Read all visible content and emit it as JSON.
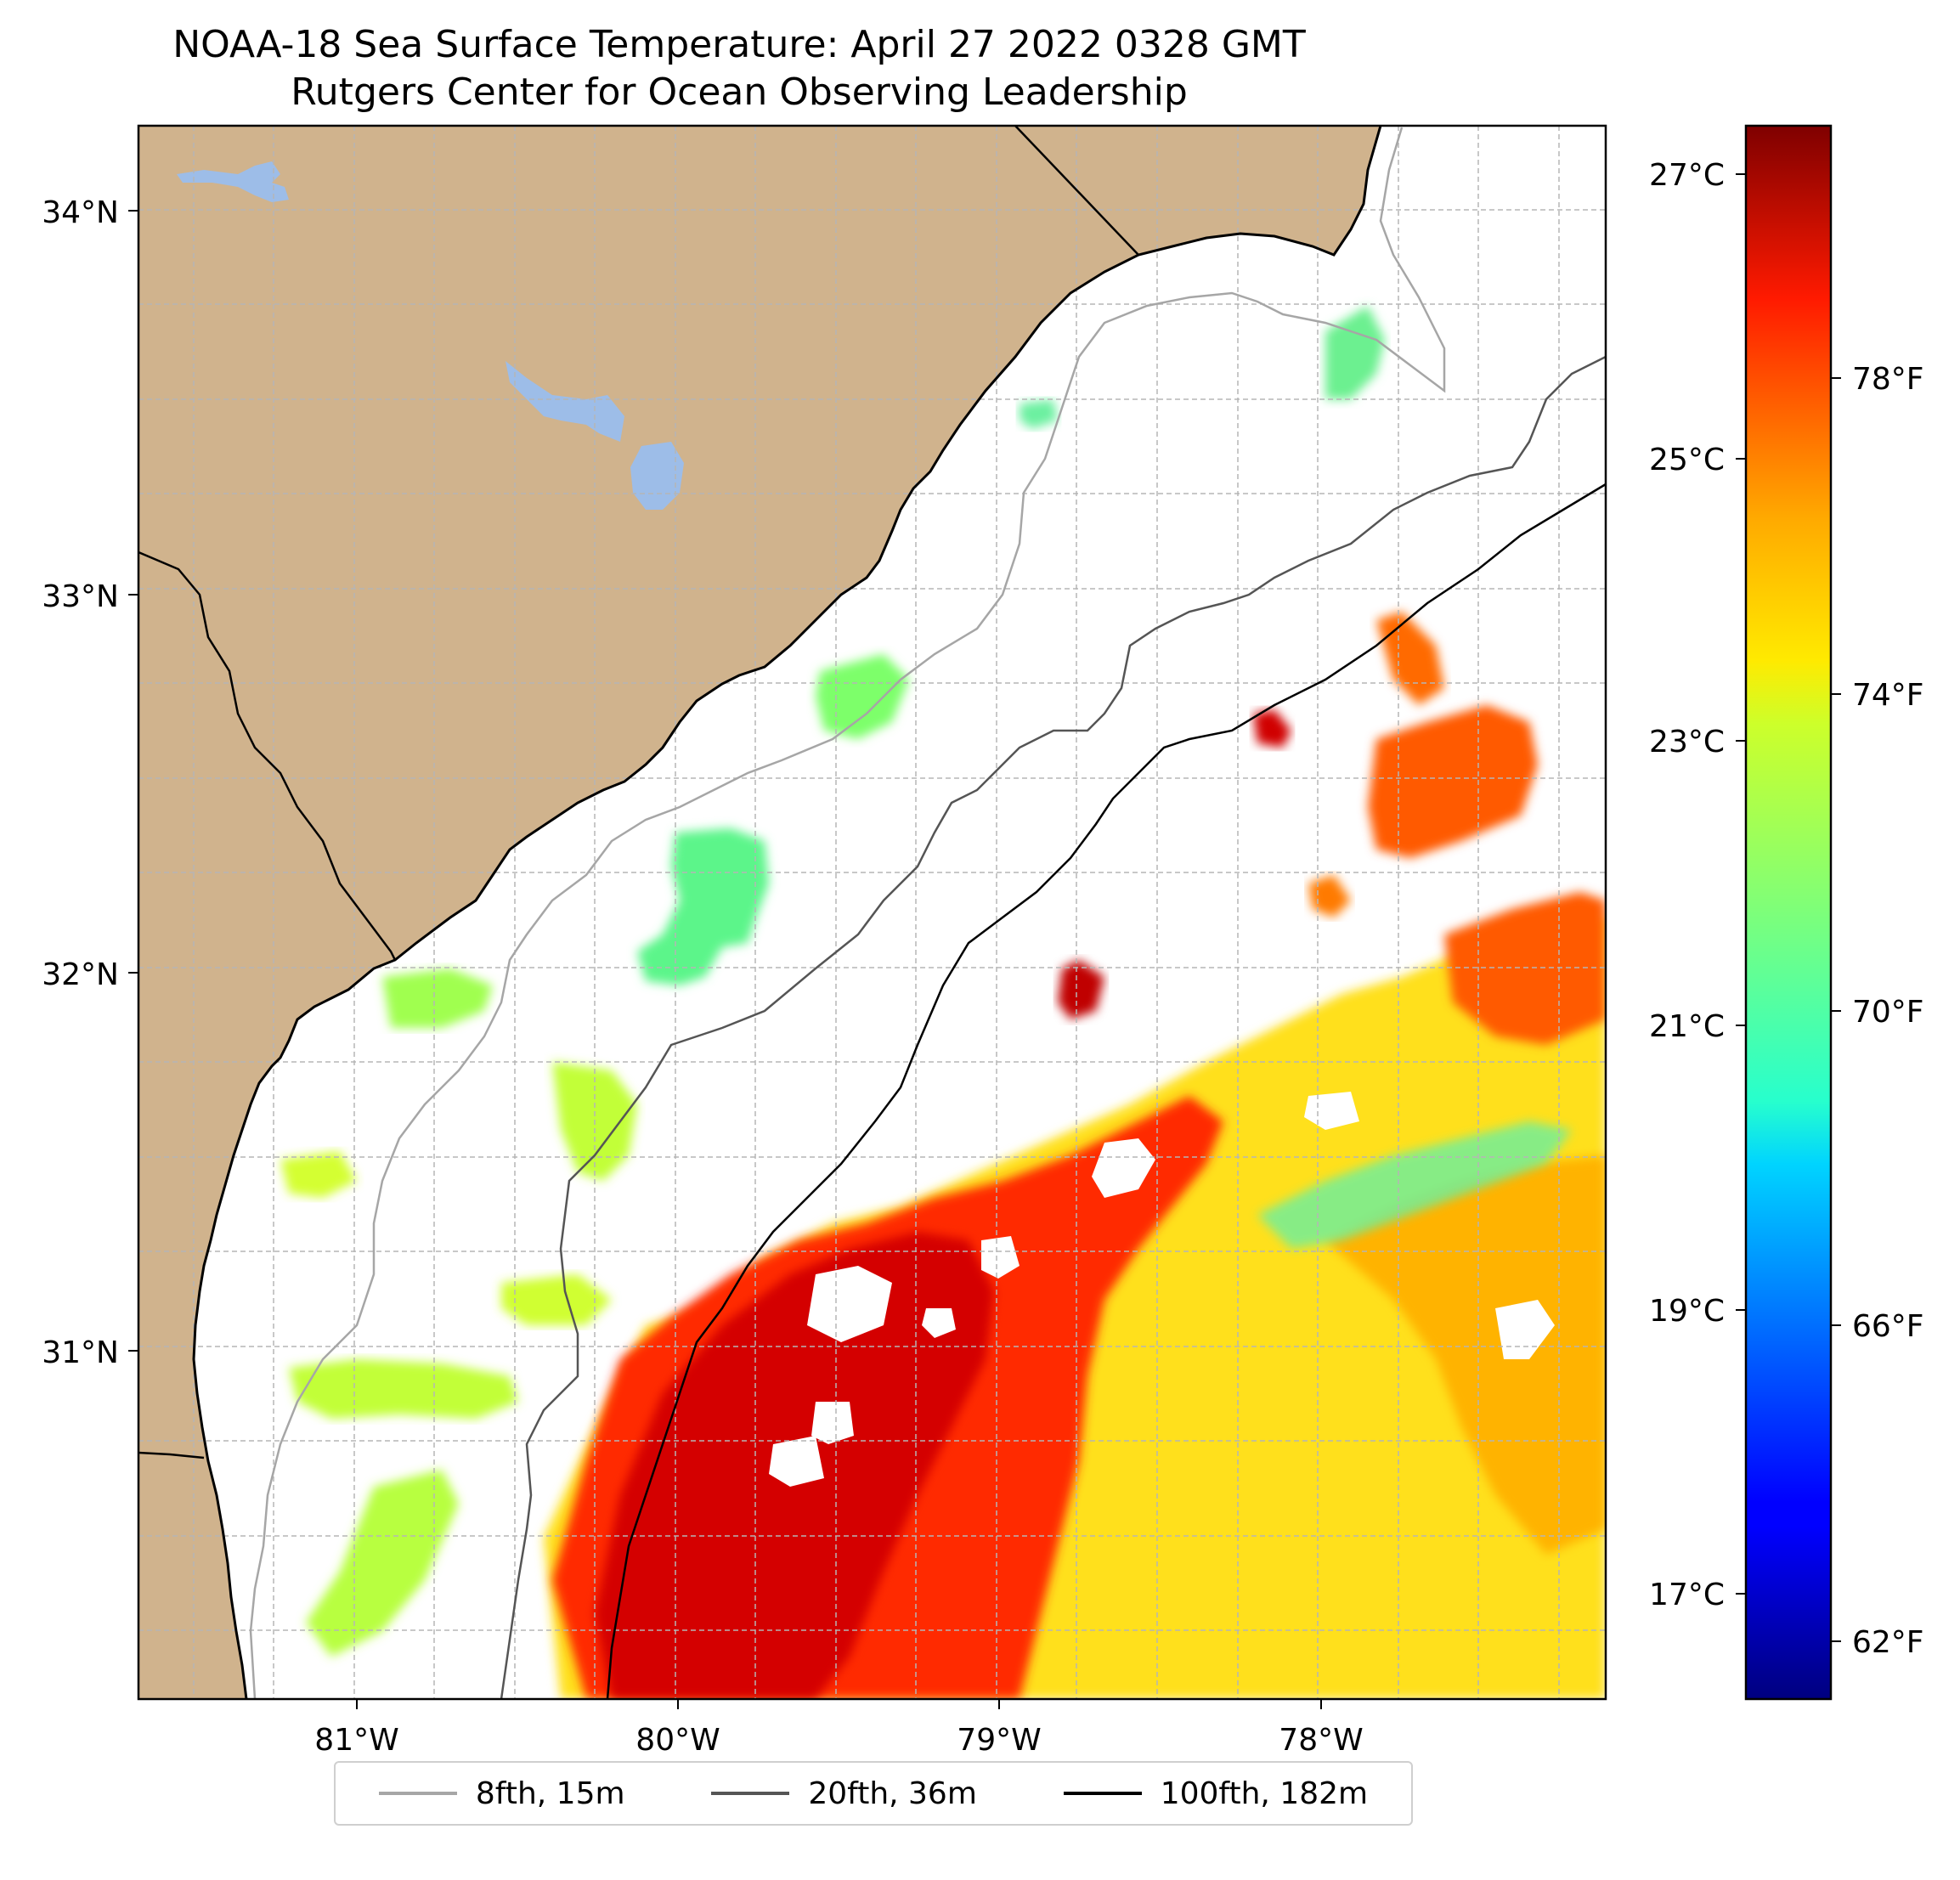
{
  "title": "NOAA-18 Sea Surface Temperature: April 27 2022 0328 GMT",
  "subtitle": "Rutgers Center for Ocean Observing Leadership",
  "map": {
    "lat_range": [
      30.1,
      34.2
    ],
    "lon_range": [
      -81.68,
      -77.1
    ],
    "lat_ticks": [
      "34°N",
      "33°N",
      "32°N",
      "31°N"
    ],
    "lon_ticks": [
      "81°W",
      "80°W",
      "79°W",
      "78°W"
    ],
    "land_color": "#d0b38d",
    "water_body_color": "#9dbde8",
    "gridlines": true
  },
  "colorbar": {
    "colormap": "jet",
    "celsius_ticks": [
      "27°C",
      "25°C",
      "23°C",
      "21°C",
      "19°C",
      "17°C"
    ],
    "fahrenheit_ticks": [
      "78°F",
      "74°F",
      "70°F",
      "66°F",
      "62°F"
    ]
  },
  "legend": {
    "items": [
      {
        "label": "8fth, 15m",
        "color": "#a6a6a6"
      },
      {
        "label": "20fth, 36m",
        "color": "#555555"
      },
      {
        "label": "100fth, 182m",
        "color": "#000000"
      }
    ]
  }
}
